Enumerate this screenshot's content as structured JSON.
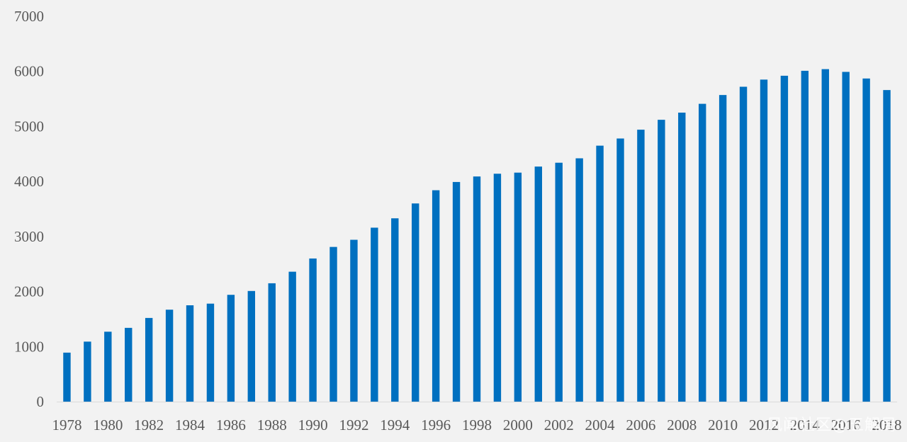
{
  "chart_data": {
    "type": "bar",
    "categories": [
      "1978",
      "1979",
      "1980",
      "1981",
      "1982",
      "1983",
      "1984",
      "1985",
      "1986",
      "1987",
      "1988",
      "1989",
      "1990",
      "1991",
      "1992",
      "1993",
      "1994",
      "1995",
      "1996",
      "1997",
      "1998",
      "1999",
      "2000",
      "2001",
      "2002",
      "2003",
      "2004",
      "2005",
      "2006",
      "2007",
      "2008",
      "2009",
      "2010",
      "2011",
      "2012",
      "2013",
      "2014",
      "2015",
      "2016",
      "2017",
      "2018"
    ],
    "x_tick_labels": [
      "1978",
      "1980",
      "1982",
      "1984",
      "1986",
      "1988",
      "1990",
      "1992",
      "1994",
      "1996",
      "1998",
      "2000",
      "2002",
      "2004",
      "2006",
      "2008",
      "2010",
      "2012",
      "2014",
      "2016",
      "2018"
    ],
    "values": [
      890,
      1090,
      1270,
      1340,
      1520,
      1670,
      1750,
      1780,
      1940,
      2010,
      2150,
      2360,
      2600,
      2810,
      2940,
      3160,
      3330,
      3600,
      3840,
      3990,
      4090,
      4140,
      4160,
      4270,
      4340,
      4420,
      4650,
      4780,
      4940,
      5120,
      5250,
      5410,
      5570,
      5720,
      5850,
      5920,
      6010,
      6040,
      5990,
      5870,
      5660
    ],
    "ylim": [
      0,
      7000
    ],
    "y_ticks": [
      0,
      1000,
      2000,
      3000,
      4000,
      5000,
      6000,
      7000
    ],
    "title": "",
    "xlabel": "",
    "ylabel": "",
    "grid": false,
    "legend": "none",
    "bar_color": "#0070c0"
  },
  "watermark": "风闻社区@五解局"
}
